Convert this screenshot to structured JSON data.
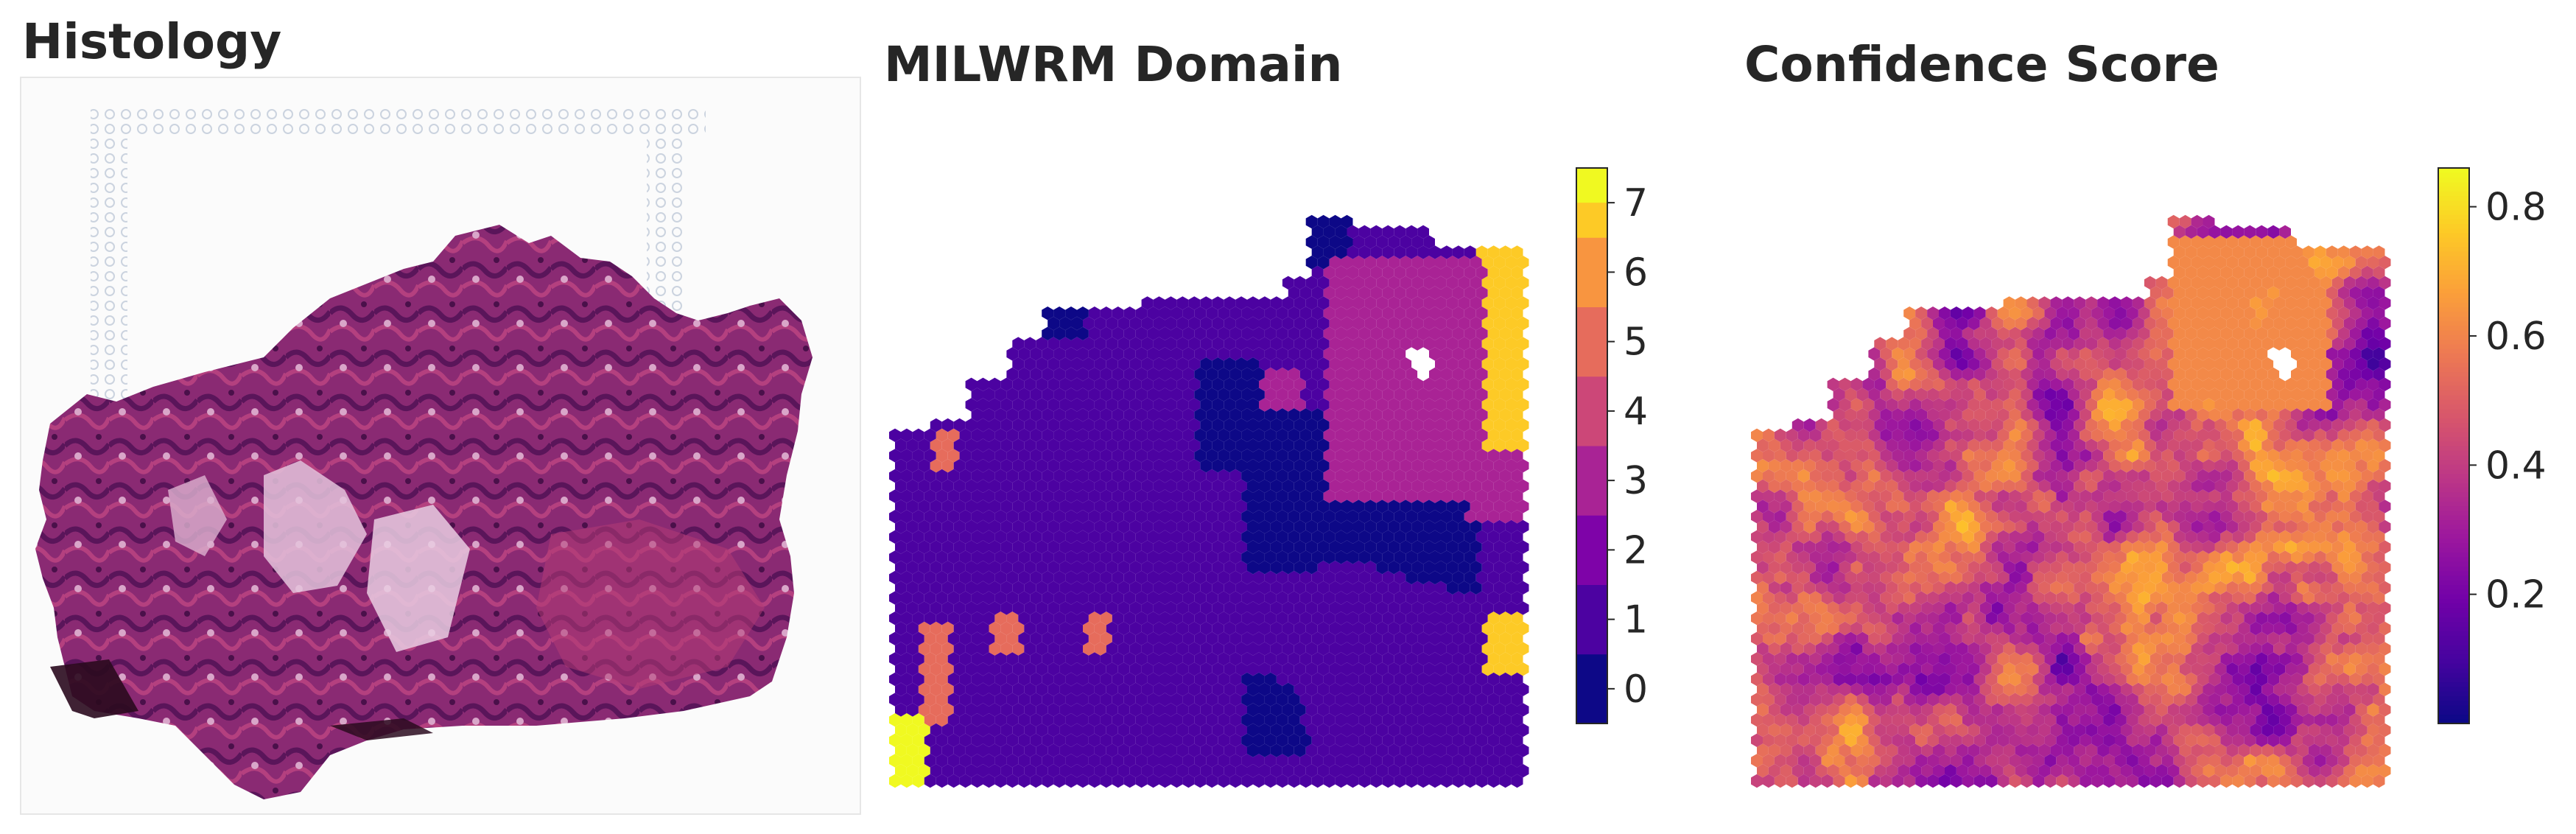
{
  "panels": {
    "histology": {
      "title": "Histology"
    },
    "domain": {
      "title": "MILWRM Domain",
      "colorbar": {
        "ticks": [
          "0",
          "1",
          "2",
          "3",
          "4",
          "5",
          "6",
          "7"
        ],
        "colors": [
          "#0d0887",
          "#46039f",
          "#7201a8",
          "#9c179e",
          "#bd3786",
          "#d8576b",
          "#ed7953",
          "#fb9f3a",
          "#fdca26",
          "#f0f921"
        ]
      }
    },
    "confidence": {
      "title": "Confidence Score",
      "colorbar": {
        "ticks": [
          "0.2",
          "0.4",
          "0.6",
          "0.8"
        ],
        "min": 0.0,
        "max": 0.86,
        "tick_values": [
          0.2,
          0.4,
          0.6,
          0.8
        ]
      }
    }
  },
  "colormap": "plasma"
}
